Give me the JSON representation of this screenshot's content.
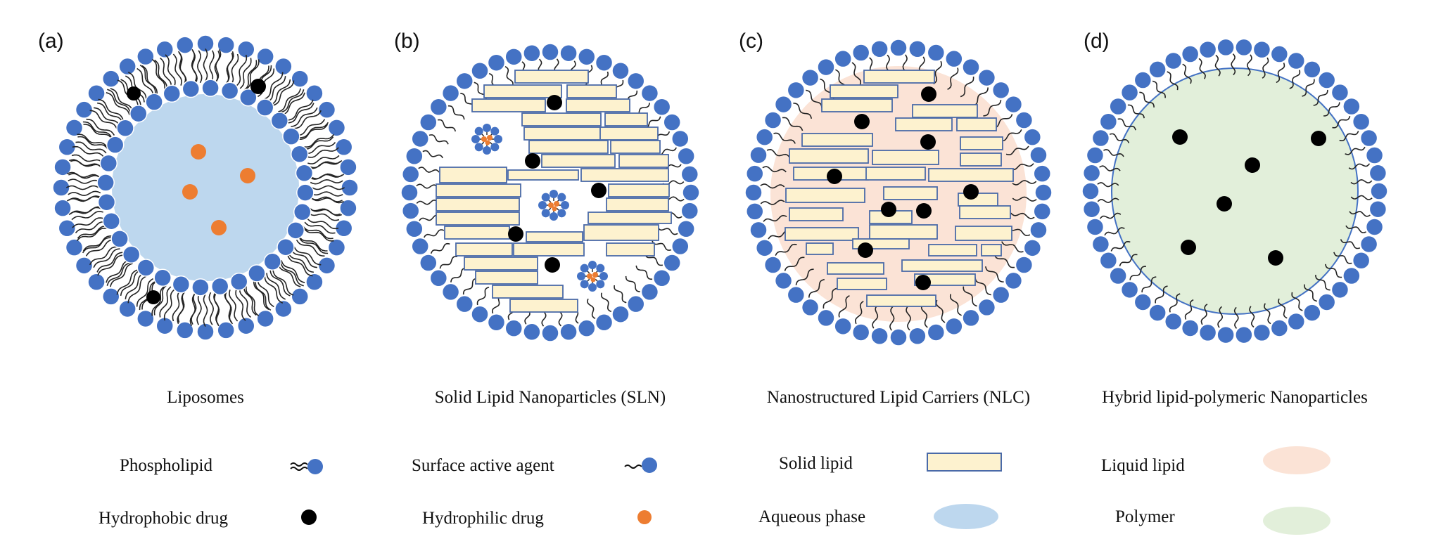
{
  "panels": [
    {
      "id": "a",
      "label": "(a)",
      "title": "Liposomes"
    },
    {
      "id": "b",
      "label": "(b)",
      "title": "Solid Lipid Nanoparticles (SLN)"
    },
    {
      "id": "c",
      "label": "(c)",
      "title": "Nanostructured Lipid Carriers (NLC)"
    },
    {
      "id": "d",
      "label": "(d)",
      "title": "Hybrid lipid-polymeric Nanoparticles"
    }
  ],
  "legend": [
    {
      "label": "Phospholipid",
      "symbol": "phospholipid-icon"
    },
    {
      "label": "Hydrophobic drug",
      "symbol": "hydrophobic-drug-icon"
    },
    {
      "label": "Surface active agent",
      "symbol": "surfactant-icon"
    },
    {
      "label": "Hydrophilic drug",
      "symbol": "hydrophilic-drug-icon"
    },
    {
      "label": "Solid lipid",
      "symbol": "solid-lipid-icon"
    },
    {
      "label": "Aqueous phase",
      "symbol": "aqueous-phase-icon"
    },
    {
      "label": "Liquid lipid",
      "symbol": "liquid-lipid-icon"
    },
    {
      "label": "Polymer",
      "symbol": "polymer-icon"
    }
  ],
  "colors": {
    "head": "#4472c4",
    "head_stroke": "#ffffff",
    "hydrophobic_drug": "#000000",
    "hydrophilic_drug": "#ed7d31",
    "solid_lipid_fill": "#fdf2cf",
    "solid_lipid_stroke": "#4a6aa8",
    "aqueous": "#bdd7ee",
    "liquid_lipid": "#fbe3d6",
    "polymer": "#e2efda",
    "polymer_stroke": "#4472c4"
  }
}
